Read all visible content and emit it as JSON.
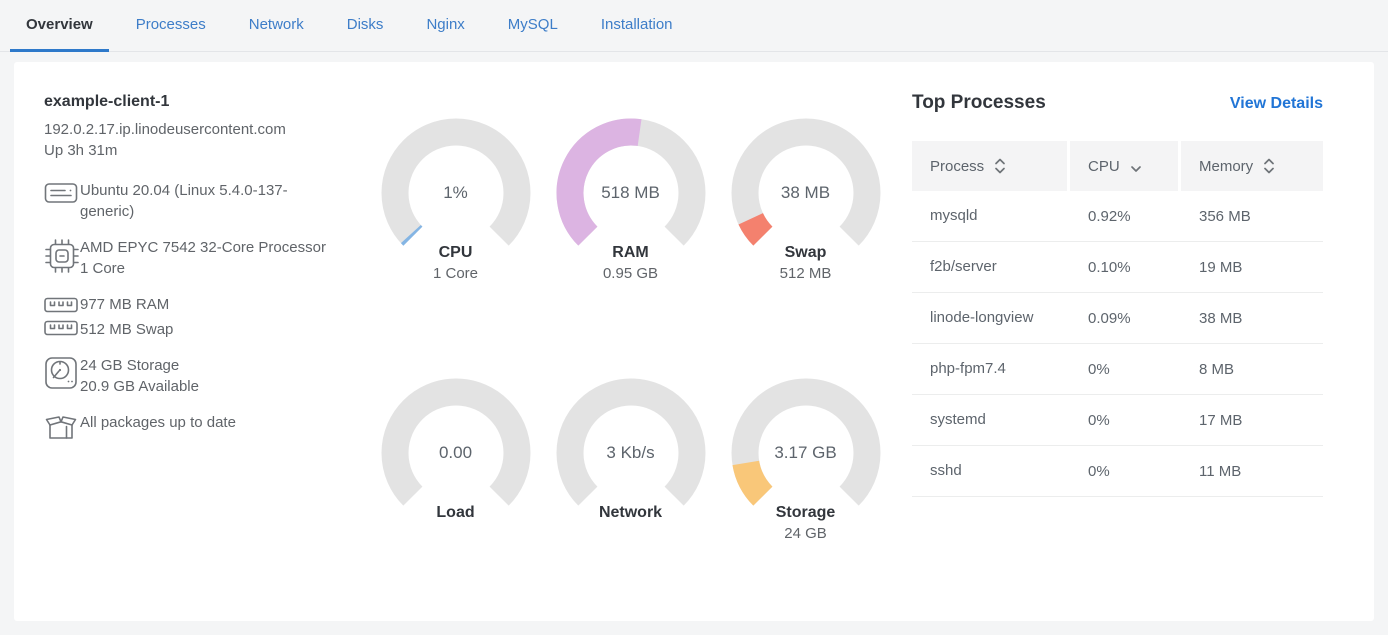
{
  "tabs": {
    "items": [
      {
        "label": "Overview",
        "active": true
      },
      {
        "label": "Processes",
        "active": false
      },
      {
        "label": "Network",
        "active": false
      },
      {
        "label": "Disks",
        "active": false
      },
      {
        "label": "Nginx",
        "active": false
      },
      {
        "label": "MySQL",
        "active": false
      },
      {
        "label": "Installation",
        "active": false
      }
    ]
  },
  "system_info": {
    "hostname": "example-client-1",
    "domain": "192.0.2.17.ip.linodeusercontent.com",
    "uptime": "Up 3h 31m",
    "os": "Ubuntu 20.04 (Linux 5.4.0-137-generic)",
    "cpu_model": "AMD EPYC 7542 32-Core Processor",
    "cpu_cores": "1 Core",
    "ram": "977 MB RAM",
    "swap": "512 MB Swap",
    "storage_total": "24 GB Storage",
    "storage_available": "20.9 GB Available",
    "packages_status": "All packages up to date"
  },
  "chart_data": {
    "type": "gauge-grid",
    "arc_degrees": 270,
    "track_color": "#e3e3e3",
    "gauges": [
      {
        "id": "cpu",
        "value_label": "1%",
        "label": "CPU",
        "sublabel": "1 Core",
        "fraction": 0.01,
        "color": "#84b5e4"
      },
      {
        "id": "ram",
        "value_label": "518 MB",
        "label": "RAM",
        "sublabel": "0.95 GB",
        "fraction": 0.53,
        "color": "#dcb4e2"
      },
      {
        "id": "swap",
        "value_label": "38 MB",
        "label": "Swap",
        "sublabel": "512 MB",
        "fraction": 0.074,
        "color": "#f4816e"
      },
      {
        "id": "load",
        "value_label": "0.00",
        "label": "Load",
        "sublabel": "",
        "fraction": 0,
        "color": "#84b5e4"
      },
      {
        "id": "network",
        "value_label": "3 Kb/s",
        "label": "Network",
        "sublabel": "",
        "fraction": 0,
        "color": "#84b5e4"
      },
      {
        "id": "storage",
        "value_label": "3.17 GB",
        "label": "Storage",
        "sublabel": "24 GB",
        "fraction": 0.132,
        "color": "#f9c779"
      }
    ]
  },
  "processes": {
    "title": "Top Processes",
    "view_details": "View Details",
    "columns": [
      {
        "label": "Process",
        "sort": "both"
      },
      {
        "label": "CPU",
        "sort": "desc"
      },
      {
        "label": "Memory",
        "sort": "both"
      }
    ],
    "rows": [
      {
        "process": "mysqld",
        "cpu": "0.92%",
        "memory": "356 MB"
      },
      {
        "process": "f2b/server",
        "cpu": "0.10%",
        "memory": "19 MB"
      },
      {
        "process": "linode-longview",
        "cpu": "0.09%",
        "memory": "38 MB"
      },
      {
        "process": "php-fpm7.4",
        "cpu": "0%",
        "memory": "8 MB"
      },
      {
        "process": "systemd",
        "cpu": "0%",
        "memory": "17 MB"
      },
      {
        "process": "sshd",
        "cpu": "0%",
        "memory": "11 MB"
      }
    ]
  },
  "colors": {
    "tab_blue": "#3d7dc8",
    "active_tab_underline": "#2e79ca",
    "link_blue": "#2175d6",
    "heading_dark": "#32363c",
    "body_gray": "#606469",
    "page_background": "#f4f5f6",
    "card_background": "#ffffff"
  }
}
